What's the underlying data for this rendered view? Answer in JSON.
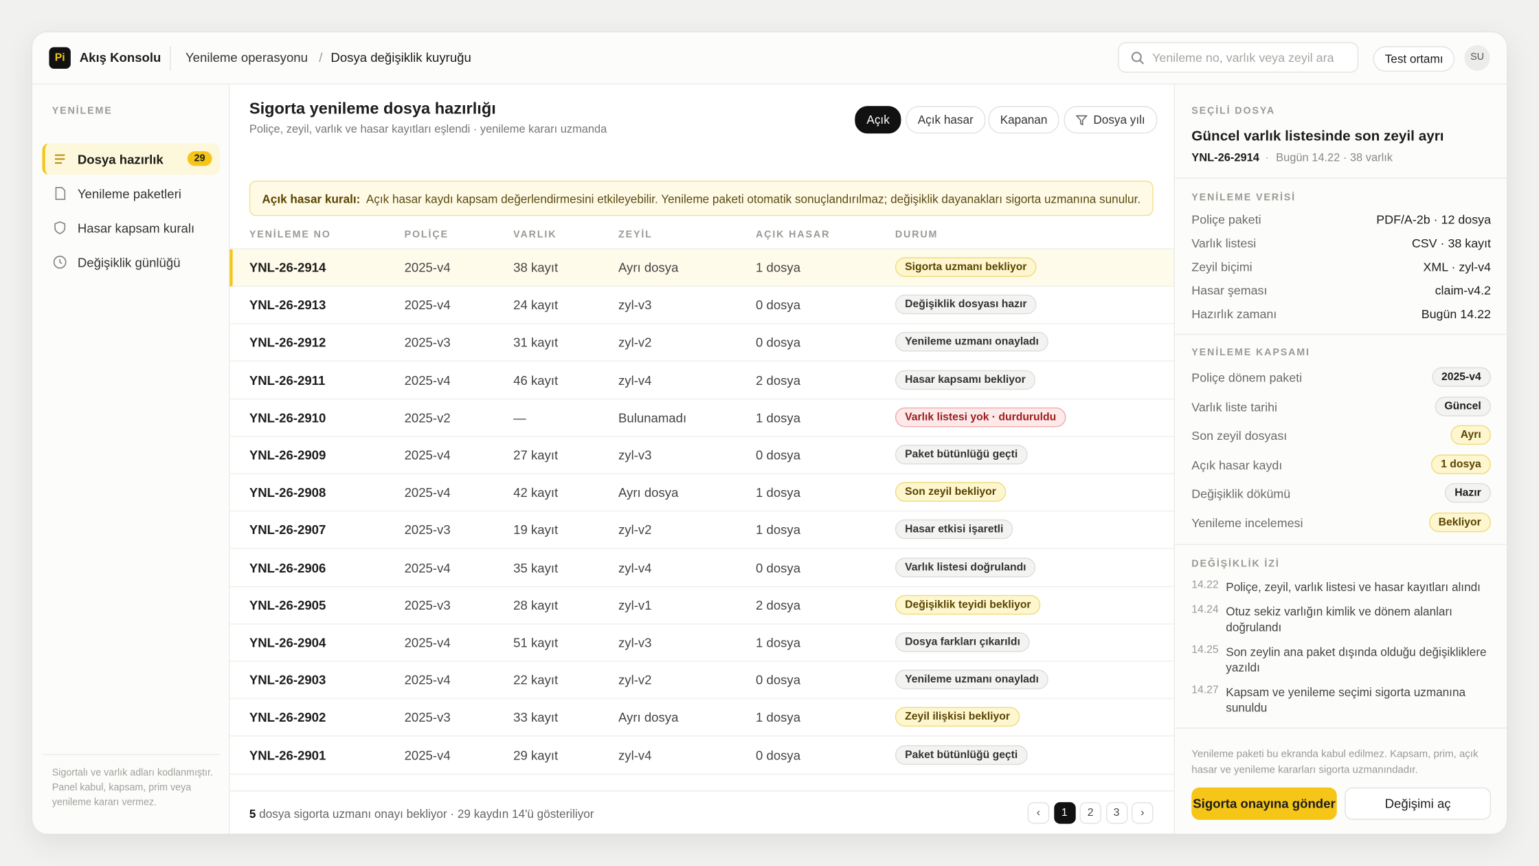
{
  "app": {
    "logo": "Pi",
    "name": "Akış Konsolu"
  },
  "breadcrumb": {
    "items": [
      "Yenileme operasyonu",
      "Dosya değişiklik kuyruğu"
    ],
    "separator": "/"
  },
  "topbar": {
    "search": "Yenileme no, varlık veya zeyil ara",
    "env": "Test ortamı",
    "avatar": "SU"
  },
  "sidebar": {
    "section": "YENİLEME",
    "items": [
      {
        "label": "Dosya hazırlık",
        "badge": 29
      },
      {
        "label": "Yenileme paketleri"
      },
      {
        "label": "Hasar kapsam kuralı"
      },
      {
        "label": "Değişiklik günlüğü"
      }
    ],
    "footnote": "Sigortalı ve varlık adları kodlanmıştır. Panel kabul, kapsam, prim veya yenileme kararı vermez."
  },
  "main": {
    "title": "Sigorta yenileme dosya hazırlığı",
    "subtitle": "Poliçe, zeyil, varlık ve hasar kayıtları eşlendi · yenileme kararı uzmanda",
    "filters": [
      "Açık",
      "Açık hasar",
      "Kapanan",
      "Dosya yılı"
    ],
    "notice": {
      "label": "Açık hasar kuralı:",
      "text": "Açık hasar kaydı kapsam değerlendirmesini etkileyebilir. Yenileme paketi otomatik sonuçlandırılmaz; değişiklik dayanakları sigorta uzmanına sunulur."
    },
    "table": {
      "columns": [
        "YENİLEME NO",
        "POLİÇE",
        "VARLIK",
        "ZEYİL",
        "AÇIK HASAR",
        "DURUM"
      ],
      "rows": [
        [
          "YNL-26-2914",
          "2025-v4",
          "38 kayıt",
          "Ayrı dosya",
          "1 dosya",
          "Sigorta uzmanı bekliyor"
        ],
        [
          "YNL-26-2913",
          "2025-v4",
          "24 kayıt",
          "zyl-v3",
          "0 dosya",
          "Değişiklik dosyası hazır"
        ],
        [
          "YNL-26-2912",
          "2025-v3",
          "31 kayıt",
          "zyl-v2",
          "0 dosya",
          "Yenileme uzmanı onayladı"
        ],
        [
          "YNL-26-2911",
          "2025-v4",
          "46 kayıt",
          "zyl-v4",
          "2 dosya",
          "Hasar kapsamı bekliyor"
        ],
        [
          "YNL-26-2910",
          "2025-v2",
          "—",
          "Bulunamadı",
          "1 dosya",
          "Varlık listesi yok · durduruldu"
        ],
        [
          "YNL-26-2909",
          "2025-v4",
          "27 kayıt",
          "zyl-v3",
          "0 dosya",
          "Paket bütünlüğü geçti"
        ],
        [
          "YNL-26-2908",
          "2025-v4",
          "42 kayıt",
          "Ayrı dosya",
          "1 dosya",
          "Son zeyil bekliyor"
        ],
        [
          "YNL-26-2907",
          "2025-v3",
          "19 kayıt",
          "zyl-v2",
          "1 dosya",
          "Hasar etkisi işaretli"
        ],
        [
          "YNL-26-2906",
          "2025-v4",
          "35 kayıt",
          "zyl-v4",
          "0 dosya",
          "Varlık listesi doğrulandı"
        ],
        [
          "YNL-26-2905",
          "2025-v3",
          "28 kayıt",
          "zyl-v1",
          "2 dosya",
          "Değişiklik teyidi bekliyor"
        ],
        [
          "YNL-26-2904",
          "2025-v4",
          "51 kayıt",
          "zyl-v3",
          "1 dosya",
          "Dosya farkları çıkarıldı"
        ],
        [
          "YNL-26-2903",
          "2025-v4",
          "22 kayıt",
          "zyl-v2",
          "0 dosya",
          "Yenileme uzmanı onayladı"
        ],
        [
          "YNL-26-2902",
          "2025-v3",
          "33 kayıt",
          "Ayrı dosya",
          "1 dosya",
          "Zeyil ilişkisi bekliyor"
        ],
        [
          "YNL-26-2901",
          "2025-v4",
          "29 kayıt",
          "zyl-v4",
          "0 dosya",
          "Paket bütünlüğü geçti"
        ]
      ]
    },
    "footer": {
      "count": 5,
      "text": "dosya sigorta uzmanı onayı bekliyor · 29 kaydın 14'ü gösteriliyor"
    },
    "pagination": [
      "‹",
      "1",
      "2",
      "3",
      "›"
    ]
  },
  "detail": {
    "section": "SEÇİLİ DOSYA",
    "title": "Güncel varlık listesinde son zeyil ayrı",
    "id": "YNL-26-2914",
    "separator": "·",
    "meta": "Bugün 14.22 · 38 varlık",
    "data": {
      "title": "YENİLEME VERİSİ",
      "rows": [
        [
          "Poliçe paketi",
          "PDF/A-2b · 12 dosya"
        ],
        [
          "Varlık listesi",
          "CSV · 38 kayıt"
        ],
        [
          "Zeyil biçimi",
          "XML · zyl-v4"
        ],
        [
          "Hasar şeması",
          "claim-v4.2"
        ],
        [
          "Hazırlık zamanı",
          "Bugün 14.22"
        ]
      ]
    },
    "scope": {
      "title": "YENİLEME KAPSAMI",
      "rows": [
        [
          "Poliçe dönem paketi",
          "2025-v4"
        ],
        [
          "Varlık liste tarihi",
          "Güncel"
        ],
        [
          "Son zeyil dosyası",
          "Ayrı"
        ],
        [
          "Açık hasar kaydı",
          "1 dosya"
        ],
        [
          "Değişiklik dökümü",
          "Hazır"
        ],
        [
          "Yenileme incelemesi",
          "Bekliyor"
        ]
      ]
    },
    "trail": {
      "title": "DEĞİŞİKLİK İZİ",
      "entries": [
        [
          "14.22",
          "Poliçe, zeyil, varlık listesi ve hasar kayıtları alındı"
        ],
        [
          "14.24",
          "Otuz sekiz varlığın kimlik ve dönem alanları doğrulandı"
        ],
        [
          "14.25",
          "Son zeylin ana paket dışında olduğu değişikliklere yazıldı"
        ],
        [
          "14.27",
          "Kapsam ve yenileme seçimi sigorta uzmanına sunuldu"
        ]
      ]
    },
    "note": "Yenileme paketi bu ekranda kabul edilmez. Kapsam, prim, açık hasar ve yenileme kararları sigorta uzmanındadır.",
    "buttons": [
      "Sigorta onayına gönder",
      "Değişimi aç"
    ]
  }
}
